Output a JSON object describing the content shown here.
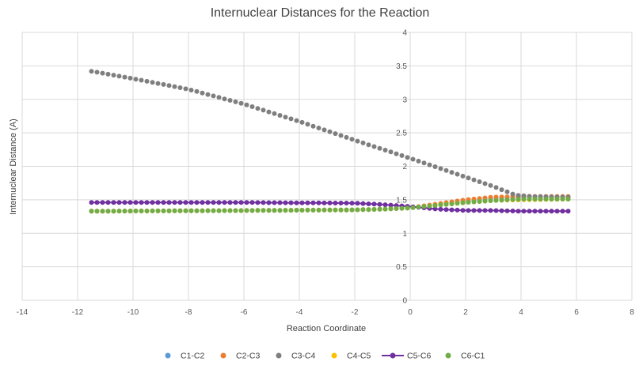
{
  "chart_data": {
    "type": "scatter",
    "title": "Internuclear Distances for the Reaction",
    "xlabel": "Reaction Coordinate",
    "ylabel": "Internuclear Distance (A)",
    "xlim": [
      -14,
      8
    ],
    "ylim": [
      0,
      4
    ],
    "x_ticks": [
      -14,
      -12,
      -10,
      -8,
      -6,
      -4,
      -2,
      0,
      2,
      4,
      6,
      8
    ],
    "y_ticks": [
      0,
      0.5,
      1,
      1.5,
      2,
      2.5,
      3,
      3.5,
      4
    ],
    "grid": true,
    "legend_position": "bottom",
    "x_start": -11.5,
    "x_end": 5.7,
    "x_step": 0.2,
    "series": [
      {
        "name": "C1-C2",
        "color": "#5b9bd5",
        "style": "markers",
        "key_x": [
          -11.5,
          -6,
          -2,
          -1,
          0,
          1,
          2,
          3,
          4,
          5.7
        ],
        "key_y": [
          1.33,
          1.34,
          1.35,
          1.36,
          1.38,
          1.43,
          1.48,
          1.52,
          1.54,
          1.54
        ]
      },
      {
        "name": "C2-C3",
        "color": "#ed7d31",
        "style": "markers",
        "key_x": [
          -11.5,
          -6,
          -2,
          -1,
          0,
          1,
          2,
          3,
          4,
          5.7
        ],
        "key_y": [
          1.33,
          1.34,
          1.35,
          1.36,
          1.38,
          1.44,
          1.5,
          1.54,
          1.55,
          1.55
        ]
      },
      {
        "name": "C3-C4",
        "color": "#7f7f7f",
        "style": "markers",
        "key_x": [
          -11.5,
          -10,
          -8,
          -6,
          -4,
          -2,
          0,
          2,
          3,
          3.8,
          4.4,
          5.7
        ],
        "key_y": [
          3.42,
          3.31,
          3.15,
          2.93,
          2.67,
          2.39,
          2.12,
          1.84,
          1.7,
          1.57,
          1.55,
          1.54
        ]
      },
      {
        "name": "C4-C5",
        "color": "#ffc000",
        "style": "markers",
        "key_x": [
          -11.5,
          -6,
          -2,
          -1,
          0,
          1,
          2,
          3,
          4,
          5.7
        ],
        "key_y": [
          1.33,
          1.34,
          1.35,
          1.36,
          1.38,
          1.42,
          1.46,
          1.49,
          1.5,
          1.51
        ]
      },
      {
        "name": "C5-C6",
        "color": "#7030a0",
        "style": "line-markers",
        "key_x": [
          -11.5,
          -6,
          -2,
          -1,
          0,
          1,
          2,
          3,
          4,
          5.7
        ],
        "key_y": [
          1.46,
          1.46,
          1.45,
          1.43,
          1.4,
          1.36,
          1.34,
          1.34,
          1.33,
          1.33
        ]
      },
      {
        "name": "C6-C1",
        "color": "#70ad47",
        "style": "markers",
        "key_x": [
          -11.5,
          -6,
          -2,
          -1,
          0,
          1,
          2,
          3,
          4,
          5.7
        ],
        "key_y": [
          1.33,
          1.34,
          1.35,
          1.36,
          1.38,
          1.42,
          1.46,
          1.49,
          1.51,
          1.51
        ]
      }
    ]
  }
}
